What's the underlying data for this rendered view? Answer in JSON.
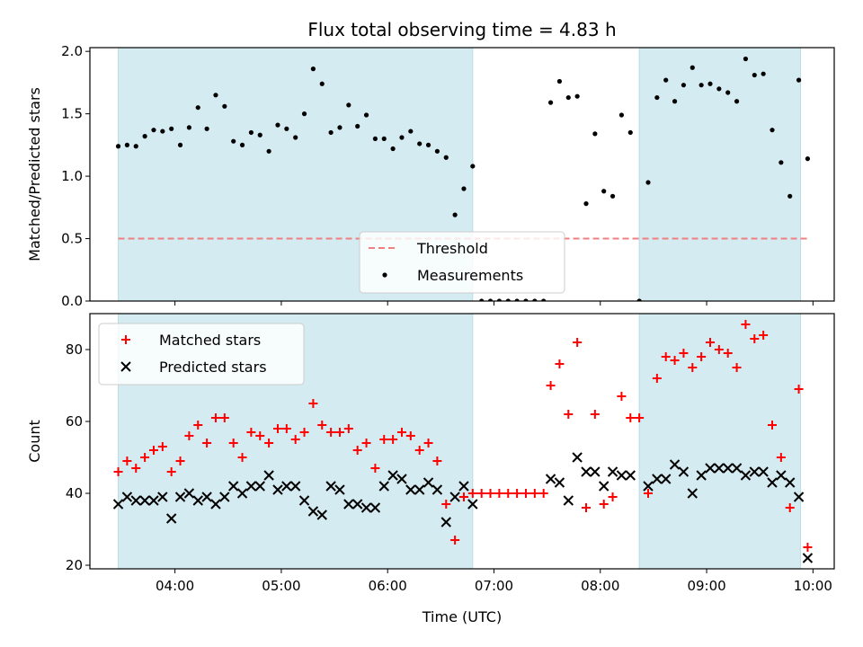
{
  "chart_data": [
    {
      "type": "scatter",
      "title": "Flux total observing time = 4.83 h",
      "ylabel": "Matched/Predicted stars",
      "xlim": [
        "03:12",
        "10:12"
      ],
      "ylim": [
        0,
        2.03
      ],
      "yticks": [
        "0.0",
        "0.5",
        "1.0",
        "1.5",
        "2.0"
      ],
      "threshold": {
        "name": "Threshold",
        "value": 0.5,
        "color": "#f08080"
      },
      "legend": {
        "placement": "bottom-center",
        "entries": [
          "Threshold",
          "Measurements"
        ]
      },
      "shaded_spans": [
        [
          "03:28",
          "06:48"
        ],
        [
          "08:22",
          "09:53"
        ]
      ],
      "shade_color": "#d4ebf1",
      "series": [
        {
          "name": "Measurements",
          "color": "#000000",
          "points": [
            [
              "03:28",
              1.24
            ],
            [
              "03:33",
              1.25
            ],
            [
              "03:38",
              1.24
            ],
            [
              "03:43",
              1.32
            ],
            [
              "03:48",
              1.37
            ],
            [
              "03:53",
              1.36
            ],
            [
              "03:58",
              1.38
            ],
            [
              "04:03",
              1.25
            ],
            [
              "04:08",
              1.39
            ],
            [
              "04:13",
              1.55
            ],
            [
              "04:18",
              1.38
            ],
            [
              "04:23",
              1.65
            ],
            [
              "04:28",
              1.56
            ],
            [
              "04:33",
              1.28
            ],
            [
              "04:38",
              1.25
            ],
            [
              "04:43",
              1.35
            ],
            [
              "04:48",
              1.33
            ],
            [
              "04:53",
              1.2
            ],
            [
              "04:58",
              1.41
            ],
            [
              "05:03",
              1.38
            ],
            [
              "05:08",
              1.31
            ],
            [
              "05:13",
              1.5
            ],
            [
              "05:18",
              1.86
            ],
            [
              "05:23",
              1.74
            ],
            [
              "05:28",
              1.35
            ],
            [
              "05:33",
              1.39
            ],
            [
              "05:38",
              1.57
            ],
            [
              "05:43",
              1.4
            ],
            [
              "05:48",
              1.49
            ],
            [
              "05:53",
              1.3
            ],
            [
              "05:58",
              1.3
            ],
            [
              "06:03",
              1.22
            ],
            [
              "06:08",
              1.31
            ],
            [
              "06:13",
              1.36
            ],
            [
              "06:18",
              1.26
            ],
            [
              "06:23",
              1.25
            ],
            [
              "06:28",
              1.2
            ],
            [
              "06:33",
              1.15
            ],
            [
              "06:38",
              0.69
            ],
            [
              "06:43",
              0.9
            ],
            [
              "06:48",
              1.08
            ],
            [
              "06:53",
              0.0
            ],
            [
              "06:58",
              0.0
            ],
            [
              "07:03",
              0.0
            ],
            [
              "07:08",
              0.0
            ],
            [
              "07:13",
              0.0
            ],
            [
              "07:18",
              0.0
            ],
            [
              "07:23",
              0.0
            ],
            [
              "07:28",
              0.0
            ],
            [
              "07:32",
              1.59
            ],
            [
              "07:37",
              1.76
            ],
            [
              "07:42",
              1.63
            ],
            [
              "07:47",
              1.64
            ],
            [
              "07:52",
              0.78
            ],
            [
              "07:57",
              1.34
            ],
            [
              "08:02",
              0.88
            ],
            [
              "08:07",
              0.84
            ],
            [
              "08:12",
              1.49
            ],
            [
              "08:17",
              1.35
            ],
            [
              "08:22",
              0.0
            ],
            [
              "08:27",
              0.95
            ],
            [
              "08:32",
              1.63
            ],
            [
              "08:37",
              1.77
            ],
            [
              "08:42",
              1.6
            ],
            [
              "08:47",
              1.73
            ],
            [
              "08:52",
              1.87
            ],
            [
              "08:57",
              1.73
            ],
            [
              "09:02",
              1.74
            ],
            [
              "09:07",
              1.7
            ],
            [
              "09:12",
              1.67
            ],
            [
              "09:17",
              1.6
            ],
            [
              "09:22",
              1.94
            ],
            [
              "09:27",
              1.81
            ],
            [
              "09:32",
              1.82
            ],
            [
              "09:37",
              1.37
            ],
            [
              "09:42",
              1.11
            ],
            [
              "09:47",
              0.84
            ],
            [
              "09:52",
              1.77
            ],
            [
              "09:57",
              1.14
            ]
          ]
        }
      ]
    },
    {
      "type": "scatter",
      "title": "",
      "xlabel": "Time (UTC)",
      "ylabel": "Count",
      "xlim": [
        "03:12",
        "10:12"
      ],
      "ylim": [
        19,
        90
      ],
      "xticks": [
        "04:00",
        "05:00",
        "06:00",
        "07:00",
        "08:00",
        "09:00",
        "10:00"
      ],
      "yticks": [
        "20",
        "40",
        "60",
        "80"
      ],
      "legend": {
        "placement": "top-left",
        "entries": [
          "Matched stars",
          "Predicted stars"
        ]
      },
      "shaded_spans": [
        [
          "03:28",
          "06:48"
        ],
        [
          "08:22",
          "09:53"
        ]
      ],
      "shade_color": "#d4ebf1",
      "series": [
        {
          "name": "Matched stars",
          "marker": "plus",
          "color": "#ff0000",
          "points": [
            [
              "03:28",
              46
            ],
            [
              "03:33",
              49
            ],
            [
              "03:38",
              47
            ],
            [
              "03:43",
              50
            ],
            [
              "03:48",
              52
            ],
            [
              "03:53",
              53
            ],
            [
              "03:58",
              46
            ],
            [
              "04:03",
              49
            ],
            [
              "04:08",
              56
            ],
            [
              "04:13",
              59
            ],
            [
              "04:18",
              54
            ],
            [
              "04:23",
              61
            ],
            [
              "04:28",
              61
            ],
            [
              "04:33",
              54
            ],
            [
              "04:38",
              50
            ],
            [
              "04:43",
              57
            ],
            [
              "04:48",
              56
            ],
            [
              "04:53",
              54
            ],
            [
              "04:58",
              58
            ],
            [
              "05:03",
              58
            ],
            [
              "05:08",
              55
            ],
            [
              "05:13",
              57
            ],
            [
              "05:18",
              65
            ],
            [
              "05:23",
              59
            ],
            [
              "05:28",
              57
            ],
            [
              "05:33",
              57
            ],
            [
              "05:38",
              58
            ],
            [
              "05:43",
              52
            ],
            [
              "05:48",
              54
            ],
            [
              "05:53",
              47
            ],
            [
              "05:58",
              55
            ],
            [
              "06:03",
              55
            ],
            [
              "06:08",
              57
            ],
            [
              "06:13",
              56
            ],
            [
              "06:18",
              52
            ],
            [
              "06:23",
              54
            ],
            [
              "06:28",
              49
            ],
            [
              "06:33",
              37
            ],
            [
              "06:38",
              27
            ],
            [
              "06:43",
              39
            ],
            [
              "06:48",
              40
            ],
            [
              "06:53",
              40
            ],
            [
              "06:58",
              40
            ],
            [
              "07:03",
              40
            ],
            [
              "07:08",
              40
            ],
            [
              "07:13",
              40
            ],
            [
              "07:18",
              40
            ],
            [
              "07:23",
              40
            ],
            [
              "07:28",
              40
            ],
            [
              "07:32",
              70
            ],
            [
              "07:37",
              76
            ],
            [
              "07:42",
              62
            ],
            [
              "07:47",
              82
            ],
            [
              "07:52",
              36
            ],
            [
              "07:57",
              62
            ],
            [
              "08:02",
              37
            ],
            [
              "08:07",
              39
            ],
            [
              "08:12",
              67
            ],
            [
              "08:17",
              61
            ],
            [
              "08:22",
              61
            ],
            [
              "08:27",
              40
            ],
            [
              "08:32",
              72
            ],
            [
              "08:37",
              78
            ],
            [
              "08:42",
              77
            ],
            [
              "08:47",
              79
            ],
            [
              "08:52",
              75
            ],
            [
              "08:57",
              78
            ],
            [
              "09:02",
              82
            ],
            [
              "09:07",
              80
            ],
            [
              "09:12",
              79
            ],
            [
              "09:17",
              75
            ],
            [
              "09:22",
              87
            ],
            [
              "09:27",
              83
            ],
            [
              "09:32",
              84
            ],
            [
              "09:37",
              59
            ],
            [
              "09:42",
              50
            ],
            [
              "09:47",
              36
            ],
            [
              "09:52",
              69
            ],
            [
              "09:57",
              25
            ]
          ]
        },
        {
          "name": "Predicted stars",
          "marker": "x",
          "color": "#000000",
          "points": [
            [
              "03:28",
              37
            ],
            [
              "03:33",
              39
            ],
            [
              "03:38",
              38
            ],
            [
              "03:43",
              38
            ],
            [
              "03:48",
              38
            ],
            [
              "03:53",
              39
            ],
            [
              "03:58",
              33
            ],
            [
              "04:03",
              39
            ],
            [
              "04:08",
              40
            ],
            [
              "04:13",
              38
            ],
            [
              "04:18",
              39
            ],
            [
              "04:23",
              37
            ],
            [
              "04:28",
              39
            ],
            [
              "04:33",
              42
            ],
            [
              "04:38",
              40
            ],
            [
              "04:43",
              42
            ],
            [
              "04:48",
              42
            ],
            [
              "04:53",
              45
            ],
            [
              "04:58",
              41
            ],
            [
              "05:03",
              42
            ],
            [
              "05:08",
              42
            ],
            [
              "05:13",
              38
            ],
            [
              "05:18",
              35
            ],
            [
              "05:23",
              34
            ],
            [
              "05:28",
              42
            ],
            [
              "05:33",
              41
            ],
            [
              "05:38",
              37
            ],
            [
              "05:43",
              37
            ],
            [
              "05:48",
              36
            ],
            [
              "05:53",
              36
            ],
            [
              "05:58",
              42
            ],
            [
              "06:03",
              45
            ],
            [
              "06:08",
              44
            ],
            [
              "06:13",
              41
            ],
            [
              "06:18",
              41
            ],
            [
              "06:23",
              43
            ],
            [
              "06:28",
              41
            ],
            [
              "06:33",
              32
            ],
            [
              "06:38",
              39
            ],
            [
              "06:43",
              42
            ],
            [
              "06:48",
              37
            ],
            [
              "07:32",
              44
            ],
            [
              "07:37",
              43
            ],
            [
              "07:42",
              38
            ],
            [
              "07:47",
              50
            ],
            [
              "07:52",
              46
            ],
            [
              "07:57",
              46
            ],
            [
              "08:02",
              42
            ],
            [
              "08:07",
              46
            ],
            [
              "08:12",
              45
            ],
            [
              "08:17",
              45
            ],
            [
              "08:27",
              42
            ],
            [
              "08:32",
              44
            ],
            [
              "08:37",
              44
            ],
            [
              "08:42",
              48
            ],
            [
              "08:47",
              46
            ],
            [
              "08:52",
              40
            ],
            [
              "08:57",
              45
            ],
            [
              "09:02",
              47
            ],
            [
              "09:07",
              47
            ],
            [
              "09:12",
              47
            ],
            [
              "09:17",
              47
            ],
            [
              "09:22",
              45
            ],
            [
              "09:27",
              46
            ],
            [
              "09:32",
              46
            ],
            [
              "09:37",
              43
            ],
            [
              "09:42",
              45
            ],
            [
              "09:47",
              43
            ],
            [
              "09:52",
              39
            ],
            [
              "09:57",
              22
            ]
          ]
        }
      ]
    }
  ]
}
